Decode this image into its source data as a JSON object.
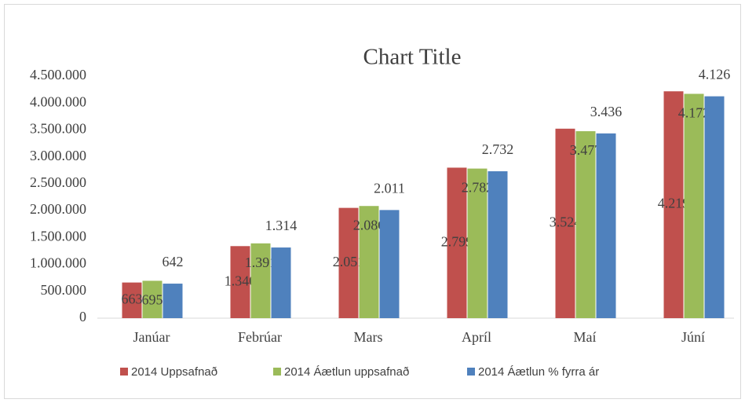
{
  "chart_data": {
    "type": "bar",
    "title": "Chart Title",
    "categories": [
      "Janúar",
      "Febrúar",
      "Mars",
      "Apríl",
      "Maí",
      "Júní"
    ],
    "series": [
      {
        "name": "2014 Uppsafnað",
        "color": "#c0504d",
        "values": [
          663000,
          1340000,
          2051000,
          2799000,
          3524000,
          4219000
        ],
        "value_labels": [
          "663",
          "1.340",
          "2.051",
          "2.799",
          "3.524",
          "4.219"
        ]
      },
      {
        "name": "2014 Áætlun uppsafnað",
        "color": "#9bbb59",
        "values": [
          695000,
          1391000,
          2086000,
          2782000,
          3477000,
          4172000
        ],
        "value_labels": [
          "695",
          "1.391",
          "2.086",
          "2.782",
          "3.477",
          "4.172"
        ]
      },
      {
        "name": "2014 Áætlun % fyrra ár",
        "color": "#4f81bd",
        "values": [
          642000,
          1314000,
          2011000,
          2732000,
          3436000,
          4126000
        ],
        "value_labels": [
          "642",
          "1.314",
          "2.011",
          "2.732",
          "3.436",
          "4.126"
        ]
      }
    ],
    "ylim": [
      0,
      4500000
    ],
    "yticks": [
      0,
      {
        "value": 500000,
        "label": "500.000"
      },
      {
        "value": 1000000,
        "label": "1.000.000"
      },
      {
        "value": 1500000,
        "label": "1.500.000"
      },
      {
        "value": 2000000,
        "label": "2.000.000"
      },
      {
        "value": 2500000,
        "label": "2.500.000"
      },
      {
        "value": 3000000,
        "label": "3.000.000"
      },
      {
        "value": 3500000,
        "label": "3.500.000"
      },
      {
        "value": 4000000,
        "label": "4.000.000"
      },
      {
        "value": 4500000,
        "label": "4.500.000"
      }
    ],
    "grid": false,
    "legend": "bottom"
  }
}
